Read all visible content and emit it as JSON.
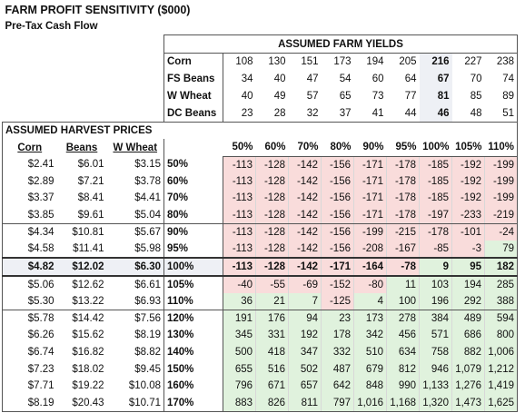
{
  "header": {
    "title": "FARM PROFIT SENSITIVITY ($000)",
    "subtitle": "Pre-Tax Cash Flow"
  },
  "yields": {
    "title": "ASSUMED FARM YIELDS",
    "rows": [
      {
        "crop": "Corn",
        "values": [
          108,
          130,
          151,
          173,
          194,
          205,
          216,
          227,
          238
        ]
      },
      {
        "crop": "FS Beans",
        "values": [
          34,
          40,
          47,
          54,
          60,
          64,
          67,
          70,
          74
        ]
      },
      {
        "crop": "W Wheat",
        "values": [
          40,
          49,
          57,
          65,
          73,
          77,
          81,
          85,
          89
        ]
      },
      {
        "crop": "DC Beans",
        "values": [
          23,
          28,
          32,
          37,
          41,
          44,
          46,
          48,
          51
        ]
      }
    ]
  },
  "prices": {
    "title": "ASSUMED HARVEST PRICES",
    "columns": [
      "Corn",
      "Beans",
      "W Wheat"
    ],
    "yield_levels": [
      "50%",
      "60%",
      "70%",
      "80%",
      "90%",
      "95%",
      "100%",
      "105%",
      "110%"
    ],
    "rows": [
      {
        "prices": [
          "$2.41",
          "$6.01",
          "$3.15"
        ],
        "level": "50%",
        "values": [
          -113,
          -128,
          -142,
          -156,
          -171,
          -178,
          -185,
          -192,
          -199
        ]
      },
      {
        "prices": [
          "$2.89",
          "$7.21",
          "$3.78"
        ],
        "level": "60%",
        "values": [
          -113,
          -128,
          -142,
          -156,
          -171,
          -178,
          -185,
          -192,
          -199
        ]
      },
      {
        "prices": [
          "$3.37",
          "$8.41",
          "$4.41"
        ],
        "level": "70%",
        "values": [
          -113,
          -128,
          -142,
          -156,
          -171,
          -178,
          -185,
          -192,
          -199
        ]
      },
      {
        "prices": [
          "$3.85",
          "$9.61",
          "$5.04"
        ],
        "level": "80%",
        "values": [
          -113,
          -128,
          -142,
          -156,
          -171,
          -178,
          -197,
          -233,
          -219
        ]
      },
      {
        "prices": [
          "$4.34",
          "$10.81",
          "$5.67"
        ],
        "level": "90%",
        "values": [
          -113,
          -128,
          -142,
          -156,
          -199,
          -215,
          -178,
          -101,
          -24
        ]
      },
      {
        "prices": [
          "$4.58",
          "$11.41",
          "$5.98"
        ],
        "level": "95%",
        "values": [
          -113,
          -128,
          -142,
          -156,
          -208,
          -167,
          -85,
          -3,
          79
        ]
      },
      {
        "prices": [
          "$4.82",
          "$12.02",
          "$6.30"
        ],
        "level": "100%",
        "values": [
          -113,
          -128,
          -142,
          -171,
          -164,
          -78,
          9,
          95,
          182
        ]
      },
      {
        "prices": [
          "$5.06",
          "$12.62",
          "$6.61"
        ],
        "level": "105%",
        "values": [
          -40,
          -55,
          -69,
          -152,
          -80,
          11,
          103,
          194,
          285
        ]
      },
      {
        "prices": [
          "$5.30",
          "$13.22",
          "$6.93"
        ],
        "level": "110%",
        "values": [
          36,
          21,
          7,
          -125,
          4,
          100,
          196,
          292,
          388
        ]
      },
      {
        "prices": [
          "$5.78",
          "$14.42",
          "$7.56"
        ],
        "level": "120%",
        "values": [
          191,
          176,
          94,
          23,
          173,
          278,
          384,
          489,
          594
        ]
      },
      {
        "prices": [
          "$6.26",
          "$15.62",
          "$8.19"
        ],
        "level": "130%",
        "values": [
          345,
          331,
          192,
          178,
          342,
          456,
          571,
          686,
          800
        ]
      },
      {
        "prices": [
          "$6.74",
          "$16.82",
          "$8.82"
        ],
        "level": "140%",
        "values": [
          500,
          418,
          347,
          332,
          510,
          634,
          758,
          882,
          "1,006"
        ]
      },
      {
        "prices": [
          "$7.23",
          "$18.02",
          "$9.45"
        ],
        "level": "150%",
        "values": [
          655,
          516,
          502,
          487,
          679,
          812,
          946,
          "1,079",
          "1,212"
        ]
      },
      {
        "prices": [
          "$7.71",
          "$19.22",
          "$10.08"
        ],
        "level": "160%",
        "values": [
          796,
          671,
          657,
          642,
          848,
          990,
          "1,133",
          "1,276",
          "1,419"
        ]
      },
      {
        "prices": [
          "$8.19",
          "$20.43",
          "$10.71"
        ],
        "level": "170%",
        "values": [
          883,
          826,
          811,
          797,
          "1,016",
          "1,168",
          "1,320",
          "1,473",
          "1,625"
        ]
      }
    ]
  }
}
